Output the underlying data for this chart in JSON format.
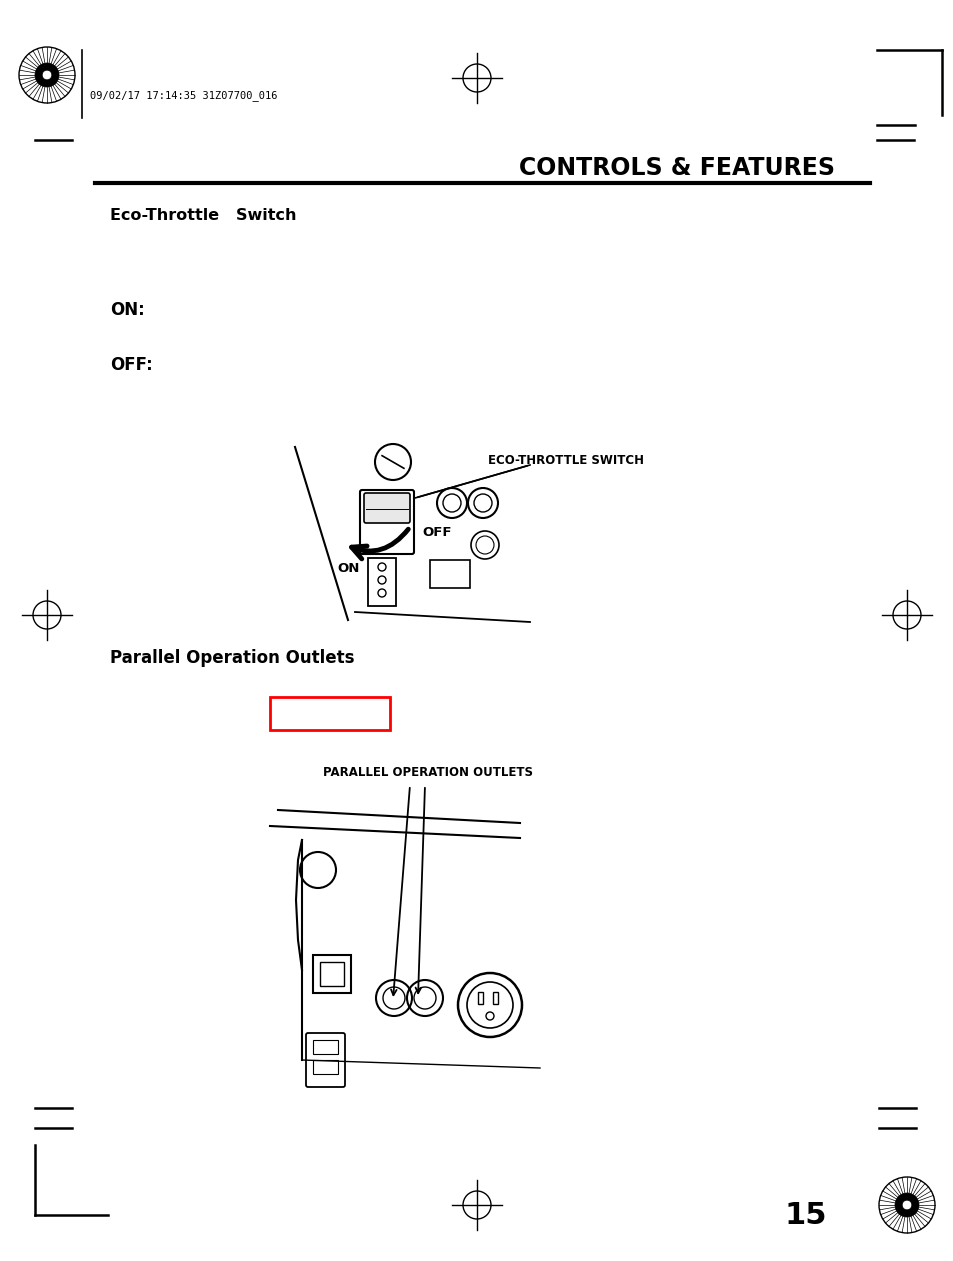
{
  "bg_color": "#ffffff",
  "title": "CONTROLS & FEATURES",
  "header_text": "09/02/17 17:14:35 31Z07700_016",
  "section1_title": "Eco-Throttle   Switch",
  "on_label": "ON:",
  "off_label": "OFF:",
  "section2_title": "Parallel Operation Outlets",
  "page_number": "15",
  "eco_throttle_label": "ECO-THROTTLE SWITCH",
  "eco_on_label": "ON",
  "eco_off_label": "OFF",
  "parallel_label": "PARALLEL OPERATION OUTLETS"
}
